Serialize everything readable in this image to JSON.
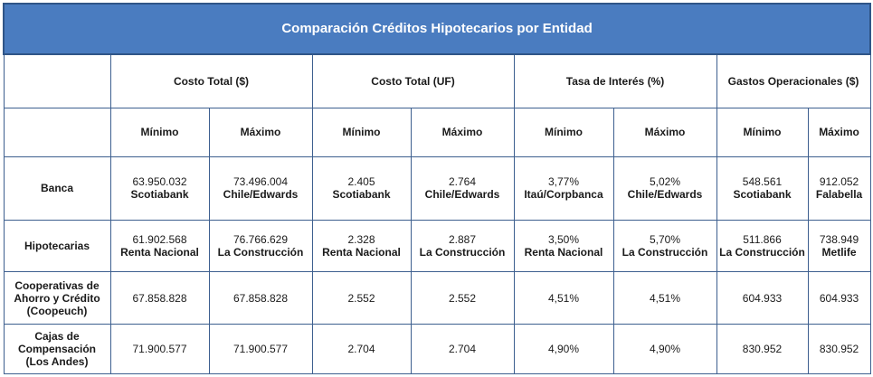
{
  "title": "Comparación Créditos Hipotecarios por Entidad",
  "groups": [
    "Costo Total ($)",
    "Costo Total (UF)",
    "Tasa de Interés (%)",
    "Gastos Operacionales ($)"
  ],
  "subheaders": [
    "Mínimo",
    "Máximo",
    "Mínimo",
    "Máximo",
    "Mínimo",
    "Máximo",
    "Mínimo",
    "Máximo"
  ],
  "rows": [
    {
      "label": "Banca",
      "cells": [
        {
          "value": "63.950.032",
          "entity": "Scotiabank"
        },
        {
          "value": "73.496.004",
          "entity": "Chile/Edwards"
        },
        {
          "value": "2.405",
          "entity": "Scotiabank"
        },
        {
          "value": "2.764",
          "entity": "Chile/Edwards"
        },
        {
          "value": "3,77%",
          "entity": "Itaú/Corpbanca"
        },
        {
          "value": "5,02%",
          "entity": "Chile/Edwards"
        },
        {
          "value": "548.561",
          "entity": "Scotiabank"
        },
        {
          "value": "912.052",
          "entity": "Falabella"
        }
      ]
    },
    {
      "label": "Hipotecarias",
      "cells": [
        {
          "value": "61.902.568",
          "entity": "Renta Nacional"
        },
        {
          "value": "76.766.629",
          "entity": "La Construcción"
        },
        {
          "value": "2.328",
          "entity": "Renta Nacional"
        },
        {
          "value": "2.887",
          "entity": "La Construcción"
        },
        {
          "value": "3,50%",
          "entity": "Renta Nacional"
        },
        {
          "value": "5,70%",
          "entity": "La Construcción"
        },
        {
          "value": "511.866",
          "entity": "La Construcción"
        },
        {
          "value": "738.949",
          "entity": "Metlife"
        }
      ]
    },
    {
      "label": "Cooperativas de Ahorro y Crédito (Coopeuch)",
      "cells": [
        {
          "value": "67.858.828",
          "entity": ""
        },
        {
          "value": "67.858.828",
          "entity": ""
        },
        {
          "value": "2.552",
          "entity": ""
        },
        {
          "value": "2.552",
          "entity": ""
        },
        {
          "value": "4,51%",
          "entity": ""
        },
        {
          "value": "4,51%",
          "entity": ""
        },
        {
          "value": "604.933",
          "entity": ""
        },
        {
          "value": "604.933",
          "entity": ""
        }
      ]
    },
    {
      "label": "Cajas de Compensación (Los Andes)",
      "cells": [
        {
          "value": "71.900.577",
          "entity": ""
        },
        {
          "value": "71.900.577",
          "entity": ""
        },
        {
          "value": "2.704",
          "entity": ""
        },
        {
          "value": "2.704",
          "entity": ""
        },
        {
          "value": "4,90%",
          "entity": ""
        },
        {
          "value": "4,90%",
          "entity": ""
        },
        {
          "value": "830.952",
          "entity": ""
        },
        {
          "value": "830.952",
          "entity": ""
        }
      ]
    }
  ]
}
